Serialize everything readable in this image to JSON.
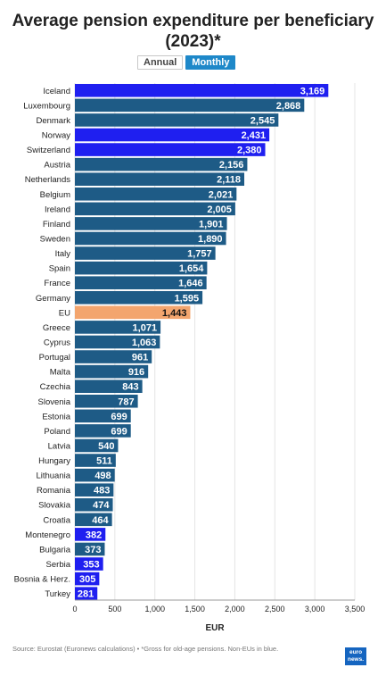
{
  "header": {
    "title": "Average pension expenditure per beneficiary (2023)*"
  },
  "toggle": {
    "annual_label": "Annual",
    "monthly_label": "Monthly",
    "selected": "Monthly"
  },
  "footer": {
    "source": "Source: Eurostat (Euronews calculations) • *Gross for old-age pensions. Non-EUs in blue.",
    "logo_text": "euro news."
  },
  "colors": {
    "eu_member": "#1e5b86",
    "non_eu": "#1f1ff0",
    "eu_average": "#f3a56e",
    "grid": "#e4e4e4"
  },
  "chart_data": {
    "type": "bar",
    "orientation": "horizontal",
    "title": "Average pension expenditure per beneficiary (2023)*",
    "xlabel": "EUR",
    "ylabel": "",
    "xlim": [
      0,
      3500
    ],
    "xticks": [
      0,
      500,
      1000,
      1500,
      2000,
      2500,
      3000,
      3500
    ],
    "xtick_labels": [
      "0",
      "500",
      "1,000",
      "1,500",
      "2,000",
      "2,500",
      "3,000",
      "3,500"
    ],
    "grid": true,
    "categories": [
      "Iceland",
      "Luxembourg",
      "Denmark",
      "Norway",
      "Switzerland",
      "Austria",
      "Netherlands",
      "Belgium",
      "Ireland",
      "Finland",
      "Sweden",
      "Italy",
      "Spain",
      "France",
      "Germany",
      "EU",
      "Greece",
      "Cyprus",
      "Portugal",
      "Malta",
      "Czechia",
      "Slovenia",
      "Estonia",
      "Poland",
      "Latvia",
      "Hungary",
      "Lithuania",
      "Romania",
      "Slovakia",
      "Croatia",
      "Montenegro",
      "Bulgaria",
      "Serbia",
      "Bosnia & Herz.",
      "Turkey"
    ],
    "values": [
      3169,
      2868,
      2545,
      2431,
      2380,
      2156,
      2118,
      2021,
      2005,
      1901,
      1890,
      1757,
      1654,
      1646,
      1595,
      1443,
      1071,
      1063,
      961,
      916,
      843,
      787,
      699,
      699,
      540,
      511,
      498,
      483,
      474,
      464,
      382,
      373,
      353,
      305,
      281
    ],
    "value_labels": [
      "3,169",
      "2,868",
      "2,545",
      "2,431",
      "2,380",
      "2,156",
      "2,118",
      "2,021",
      "2,005",
      "1,901",
      "1,890",
      "1,757",
      "1,654",
      "1,646",
      "1,595",
      "1,443",
      "1,071",
      "1,063",
      "961",
      "916",
      "843",
      "787",
      "699",
      "699",
      "540",
      "511",
      "498",
      "483",
      "474",
      "464",
      "382",
      "373",
      "353",
      "305",
      "281"
    ],
    "groups": [
      "non-EU",
      "EU",
      "EU",
      "non-EU",
      "non-EU",
      "EU",
      "EU",
      "EU",
      "EU",
      "EU",
      "EU",
      "EU",
      "EU",
      "EU",
      "EU",
      "EU average",
      "EU",
      "EU",
      "EU",
      "EU",
      "EU",
      "EU",
      "EU",
      "EU",
      "EU",
      "EU",
      "EU",
      "EU",
      "EU",
      "EU",
      "non-EU",
      "EU",
      "non-EU",
      "non-EU",
      "non-EU"
    ]
  }
}
